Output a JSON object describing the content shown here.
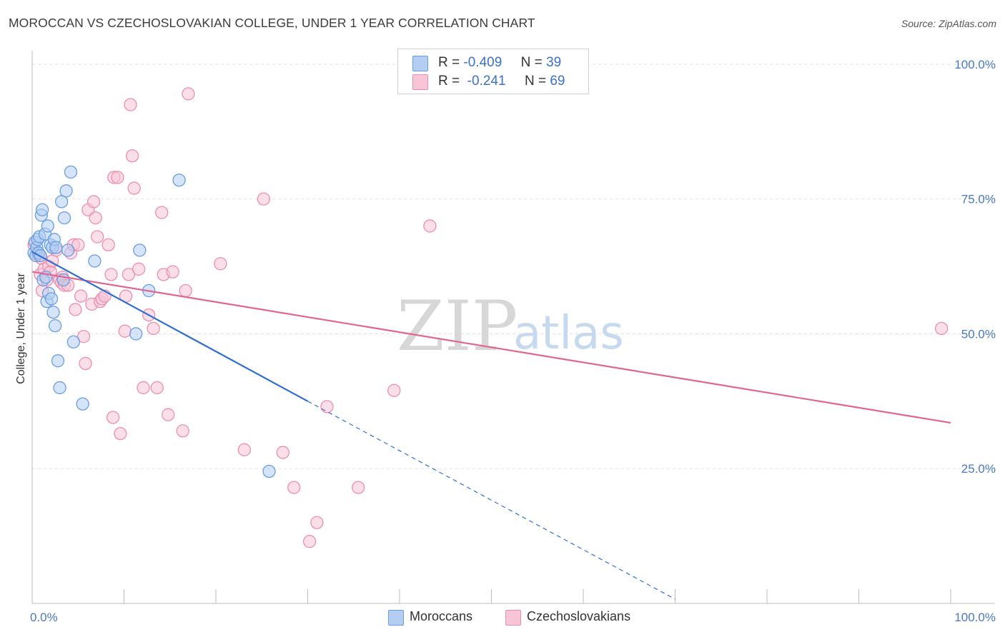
{
  "title": "MOROCCAN VS CZECHOSLOVAKIAN COLLEGE, UNDER 1 YEAR CORRELATION CHART",
  "source": "Source: ZipAtlas.com",
  "legend": {
    "rows": [
      {
        "r_label": "R =",
        "r_value": "-0.409",
        "n_label": "N =",
        "n_value": "39"
      },
      {
        "r_label": "R =",
        "r_value": "-0.241",
        "n_label": "N =",
        "n_value": "69"
      }
    ]
  },
  "bottom_legend": [
    "Moroccans",
    "Czechoslovakians"
  ],
  "watermark": {
    "zip": "ZIP",
    "atlas": "atlas"
  },
  "colors": {
    "moroccans": "#6a9ee0",
    "moroccans_fill": "#b3cef2",
    "czechoslovakians": "#ec8fae",
    "czechoslovakians_fill": "#f7c5d6",
    "blue_line": "#2f6fd1",
    "pink_line": "#e06690",
    "axis_text": "#4a78c4"
  },
  "chart_data": {
    "type": "scatter",
    "title": "MOROCCAN VS CZECHOSLOVAKIAN COLLEGE, UNDER 1 YEAR CORRELATION CHART",
    "xlabel": "",
    "ylabel": "College, Under 1 year",
    "xlim": [
      0,
      100
    ],
    "ylim": [
      0,
      102.5
    ],
    "x_tick_labels": [
      "0.0%",
      "100.0%"
    ],
    "y_tick_values": [
      25,
      50,
      75,
      100
    ],
    "y_tick_labels": [
      "25.0%",
      "50.0%",
      "75.0%",
      "100.0%"
    ],
    "grid": true,
    "series": [
      {
        "name": "Moroccans",
        "r": -0.409,
        "n": 39,
        "points": [
          [
            0.2,
            65.0
          ],
          [
            0.3,
            67.0
          ],
          [
            0.4,
            64.5
          ],
          [
            0.5,
            66.0
          ],
          [
            0.6,
            67.5
          ],
          [
            0.7,
            65.0
          ],
          [
            0.8,
            68.0
          ],
          [
            1.0,
            72.0
          ],
          [
            1.1,
            73.0
          ],
          [
            1.2,
            60.0
          ],
          [
            1.4,
            68.5
          ],
          [
            1.5,
            60.5
          ],
          [
            1.6,
            56.0
          ],
          [
            1.7,
            70.0
          ],
          [
            1.8,
            57.5
          ],
          [
            2.0,
            66.5
          ],
          [
            2.1,
            56.5
          ],
          [
            2.2,
            66.0
          ],
          [
            2.3,
            54.0
          ],
          [
            2.4,
            67.5
          ],
          [
            2.5,
            51.5
          ],
          [
            2.6,
            66.0
          ],
          [
            2.8,
            45.0
          ],
          [
            3.0,
            40.0
          ],
          [
            3.2,
            74.5
          ],
          [
            3.4,
            60.0
          ],
          [
            3.5,
            71.5
          ],
          [
            3.7,
            76.5
          ],
          [
            3.9,
            65.5
          ],
          [
            4.2,
            80.0
          ],
          [
            4.5,
            48.5
          ],
          [
            5.5,
            37.0
          ],
          [
            6.8,
            63.5
          ],
          [
            11.3,
            50.0
          ],
          [
            11.7,
            65.5
          ],
          [
            12.7,
            58.0
          ],
          [
            16.0,
            78.5
          ],
          [
            25.8,
            24.5
          ],
          [
            0.9,
            64.5
          ]
        ],
        "trend": {
          "x": [
            0,
            30
          ],
          "y": [
            65.2,
            37.5
          ]
        },
        "trend_extension": {
          "x": [
            30,
            70
          ],
          "y": [
            37.5,
            0.8
          ]
        }
      },
      {
        "name": "Czechoslovakians",
        "r": -0.241,
        "n": 69,
        "points": [
          [
            0.2,
            66.5
          ],
          [
            0.3,
            67.0
          ],
          [
            0.5,
            65.0
          ],
          [
            0.7,
            64.5
          ],
          [
            0.9,
            61.0
          ],
          [
            1.0,
            64.0
          ],
          [
            1.1,
            58.0
          ],
          [
            1.3,
            62.0
          ],
          [
            1.6,
            60.0
          ],
          [
            1.8,
            62.5
          ],
          [
            2.0,
            61.5
          ],
          [
            2.2,
            63.5
          ],
          [
            2.6,
            65.5
          ],
          [
            3.0,
            60.0
          ],
          [
            3.2,
            59.5
          ],
          [
            3.3,
            60.5
          ],
          [
            3.5,
            59.0
          ],
          [
            3.9,
            59.0
          ],
          [
            4.2,
            65.0
          ],
          [
            4.5,
            66.5
          ],
          [
            4.7,
            54.5
          ],
          [
            5.0,
            66.5
          ],
          [
            5.3,
            57.0
          ],
          [
            5.6,
            49.5
          ],
          [
            5.8,
            44.5
          ],
          [
            6.1,
            73.0
          ],
          [
            6.5,
            55.5
          ],
          [
            6.7,
            74.5
          ],
          [
            6.9,
            71.5
          ],
          [
            7.1,
            68.0
          ],
          [
            7.4,
            56.0
          ],
          [
            7.6,
            56.5
          ],
          [
            7.9,
            57.0
          ],
          [
            8.3,
            66.5
          ],
          [
            8.6,
            61.0
          ],
          [
            8.8,
            34.5
          ],
          [
            8.9,
            79.0
          ],
          [
            9.3,
            79.0
          ],
          [
            9.6,
            31.5
          ],
          [
            10.1,
            50.5
          ],
          [
            10.2,
            57.0
          ],
          [
            10.5,
            61.0
          ],
          [
            10.7,
            92.5
          ],
          [
            10.9,
            83.0
          ],
          [
            11.1,
            77.0
          ],
          [
            11.6,
            62.0
          ],
          [
            12.1,
            40.0
          ],
          [
            12.7,
            53.5
          ],
          [
            13.2,
            51.0
          ],
          [
            13.6,
            40.0
          ],
          [
            14.1,
            72.5
          ],
          [
            14.3,
            61.0
          ],
          [
            14.8,
            35.0
          ],
          [
            15.3,
            61.5
          ],
          [
            16.4,
            32.0
          ],
          [
            16.7,
            58.0
          ],
          [
            17.0,
            94.5
          ],
          [
            20.5,
            63.0
          ],
          [
            23.1,
            28.5
          ],
          [
            25.2,
            75.0
          ],
          [
            27.3,
            28.0
          ],
          [
            28.5,
            21.5
          ],
          [
            30.2,
            11.5
          ],
          [
            31.0,
            15.0
          ],
          [
            32.1,
            36.5
          ],
          [
            35.5,
            21.5
          ],
          [
            39.4,
            39.5
          ],
          [
            43.3,
            70.0
          ],
          [
            99.0,
            51.0
          ]
        ],
        "trend": {
          "x": [
            0,
            100
          ],
          "y": [
            61.5,
            33.5
          ]
        }
      }
    ]
  }
}
